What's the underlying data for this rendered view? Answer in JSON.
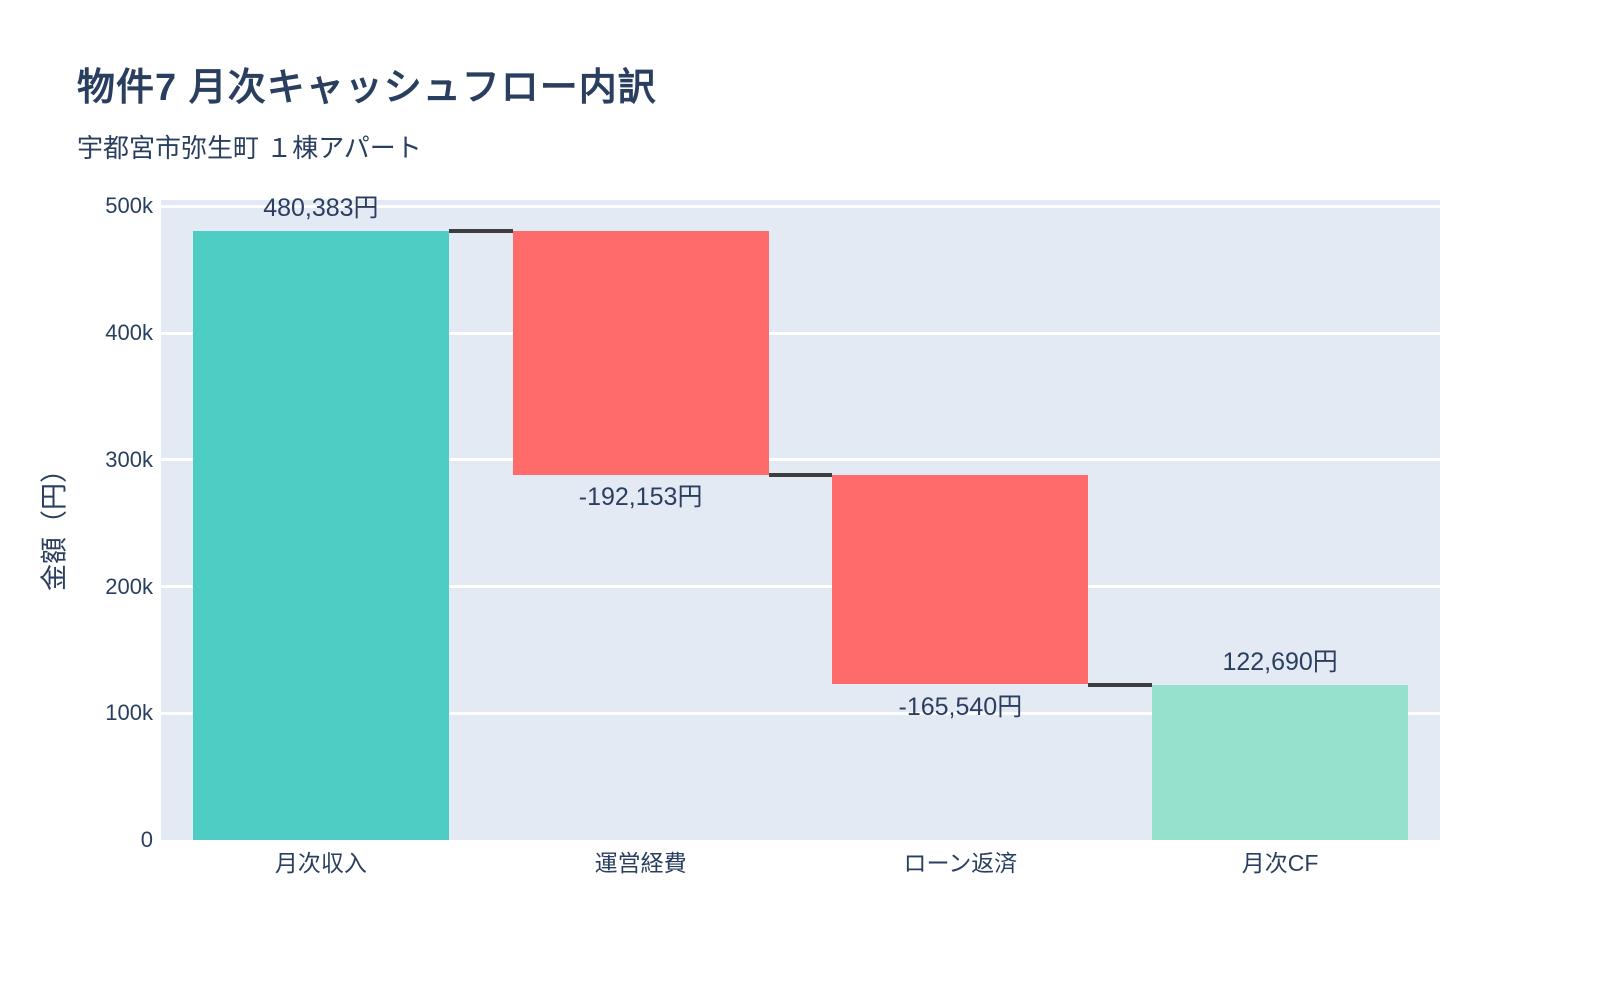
{
  "header": {
    "title": "物件7 月次キャッシュフロー内訳",
    "subtitle": "宇都宮市弥生町 １棟アパート"
  },
  "chart_data": {
    "type": "bar",
    "subtype": "waterfall",
    "title": "物件7 月次キャッシュフロー内訳",
    "subtitle": "宇都宮市弥生町 １棟アパート",
    "categories": [
      "月次収入",
      "運営経費",
      "ローン返済",
      "月次CF"
    ],
    "measures": [
      "relative",
      "relative",
      "relative",
      "total"
    ],
    "values": [
      480383,
      -192153,
      -165540,
      122690
    ],
    "bar_text_labels": [
      "480,383円",
      "-192,153円",
      "-165,540円",
      "122,690円"
    ],
    "running_totals": [
      480383,
      288230,
      122690,
      122690
    ],
    "xlabel": "",
    "ylabel": "金額（円）",
    "ylim": [
      0,
      505000
    ],
    "ytick_values": [
      0,
      100000,
      200000,
      300000,
      400000,
      500000
    ],
    "ytick_labels": [
      "0",
      "100k",
      "200k",
      "300k",
      "400k",
      "500k"
    ],
    "grid": true,
    "legend": "none",
    "bar_width_fraction": 0.8,
    "colors": {
      "increasing": "#4ECDC4",
      "decreasing": "#FF6B6B",
      "total": "#96E1CD",
      "connector": "#3D3D3F",
      "plot_background": "#E4EAF4",
      "gridline": "#FFFFFF",
      "text": "#2A3F5F",
      "page_background": "#FFFFFF"
    }
  }
}
